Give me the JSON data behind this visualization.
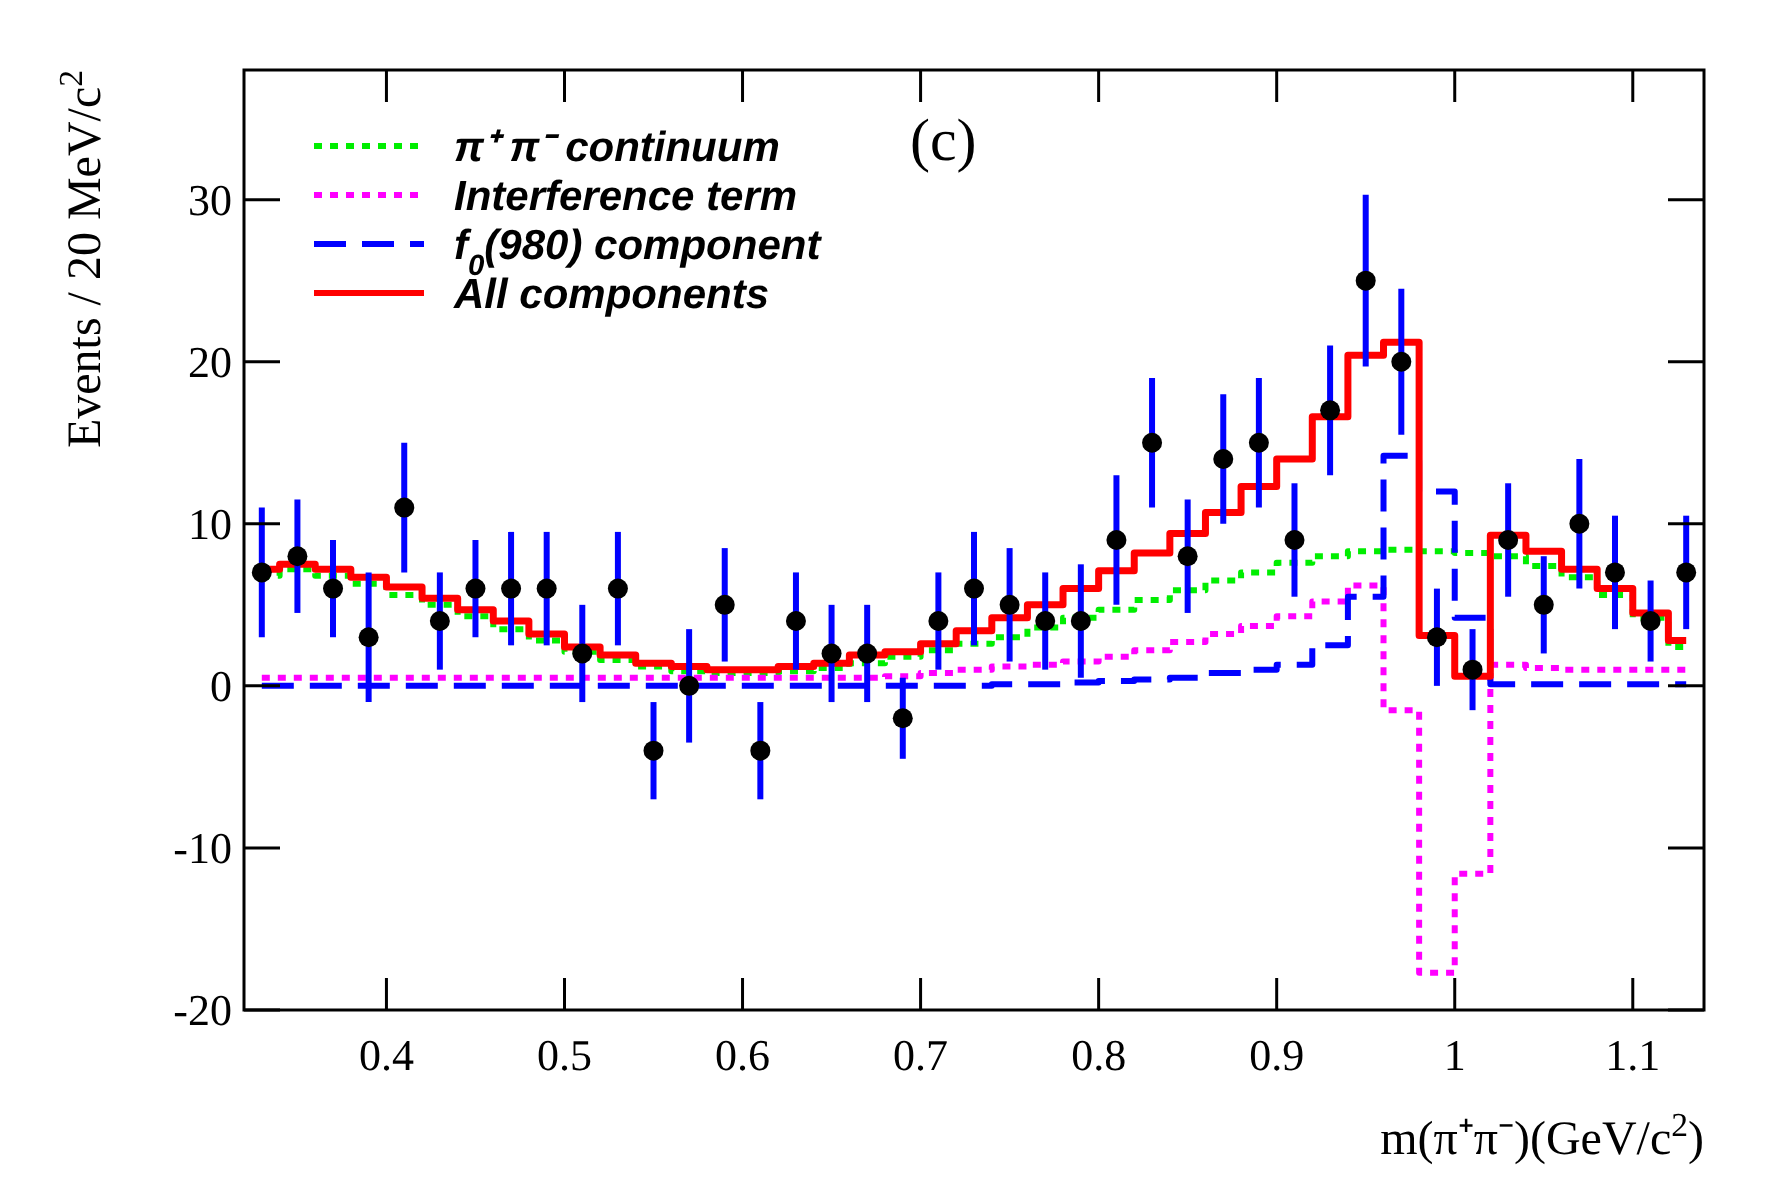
{
  "chart_data": {
    "type": "step",
    "xlabel": "m(π⁺π⁻)(GeV/c$^{2}$)",
    "ylabel": "Events / 20 MeV/c$^{2}$",
    "annotations": [
      "(c)"
    ],
    "x": [
      0.33,
      0.35,
      0.37,
      0.39,
      0.41,
      0.43,
      0.45,
      0.47,
      0.49,
      0.51,
      0.53,
      0.55,
      0.57,
      0.59,
      0.61,
      0.63,
      0.65,
      0.67,
      0.69,
      0.71,
      0.73,
      0.75,
      0.77,
      0.79,
      0.81,
      0.83,
      0.85,
      0.87,
      0.89,
      0.91,
      0.93,
      0.95,
      0.97,
      0.99,
      1.01,
      1.03,
      1.05,
      1.07,
      1.09,
      1.11,
      1.13
    ],
    "xlim": [
      0.32,
      1.14
    ],
    "xticks": [
      0.4,
      0.5,
      0.6,
      0.7,
      0.8,
      0.9,
      {
        "value": 1,
        "label": "1"
      },
      1.1
    ],
    "ylim": [
      -20,
      38
    ],
    "yticks": [
      -20,
      -10,
      0,
      10,
      20,
      30
    ],
    "legend": "top left",
    "grid": false,
    "series": [
      {
        "name": "π⁺ π⁻ continuum",
        "color": "#00ee00",
        "line_style": "dotted",
        "values": [
          6.8,
          7.2,
          6.8,
          6.3,
          5.6,
          5.0,
          4.3,
          3.5,
          2.8,
          2.1,
          1.6,
          1.2,
          0.9,
          0.8,
          0.8,
          0.9,
          1.1,
          1.4,
          1.8,
          2.2,
          2.6,
          3.0,
          3.6,
          4.2,
          4.7,
          5.3,
          5.9,
          6.5,
          7.0,
          7.6,
          8.0,
          8.3,
          8.4,
          8.3,
          8.2,
          8.0,
          7.4,
          6.7,
          5.6,
          4.2,
          2.4
        ]
      },
      {
        "name": "Interference term",
        "color": "#ff00ff",
        "line_style": "dotted",
        "values": [
          0.5,
          0.5,
          0.5,
          0.5,
          0.5,
          0.5,
          0.5,
          0.5,
          0.5,
          0.5,
          0.5,
          0.5,
          0.5,
          0.5,
          0.5,
          0.5,
          0.5,
          0.5,
          0.6,
          0.8,
          1.0,
          1.2,
          1.3,
          1.5,
          1.8,
          2.2,
          2.7,
          3.2,
          3.7,
          4.3,
          5.2,
          6.2,
          -1.5,
          -17.7,
          -11.6,
          1.3,
          1.1,
          1.0,
          1.0,
          1.0,
          1.0
        ]
      },
      {
        "name": "f$_{0}$(980) component",
        "color": "#0000ff",
        "line_style": "dashed",
        "values": [
          0,
          0,
          0,
          0,
          0,
          0,
          0,
          0,
          0,
          0,
          0,
          0,
          0,
          0,
          0,
          0,
          0,
          0,
          0,
          0,
          0,
          0.1,
          0.1,
          0.2,
          0.3,
          0.4,
          0.5,
          0.8,
          1.0,
          1.3,
          2.5,
          5.5,
          14.2,
          12.0,
          4.2,
          0.1,
          0.1,
          0.1,
          0.1,
          0.1,
          0.1
        ]
      },
      {
        "name": "All components",
        "color": "#ff0000",
        "line_style": "solid",
        "values": [
          7.2,
          7.5,
          7.2,
          6.7,
          6.1,
          5.4,
          4.7,
          4.0,
          3.2,
          2.4,
          1.9,
          1.4,
          1.2,
          1.0,
          1.0,
          1.2,
          1.4,
          1.9,
          2.1,
          2.6,
          3.4,
          4.2,
          5.0,
          6.0,
          7.1,
          8.2,
          9.4,
          10.7,
          12.3,
          14.0,
          16.6,
          20.4,
          21.2,
          3.1,
          0.6,
          9.3,
          8.3,
          7.2,
          6.0,
          4.5,
          2.8
        ]
      },
      {
        "type": "scatter",
        "color": "#000000",
        "marker": "circle",
        "values": [
          7,
          8,
          6,
          3,
          11,
          4,
          6,
          6,
          6,
          2,
          6,
          -4,
          0,
          5,
          -4,
          4,
          2,
          2,
          -2,
          4,
          6,
          5,
          4,
          4,
          9,
          15,
          8,
          14,
          15,
          9,
          17,
          25,
          20,
          3,
          1,
          9,
          5,
          10,
          7,
          4,
          7
        ],
        "errors": [
          4,
          3.5,
          3,
          4,
          4,
          3,
          3,
          3.5,
          3.5,
          3,
          3.5,
          3,
          3.5,
          3.5,
          3,
          3,
          3,
          3,
          2.5,
          3,
          3.5,
          3.5,
          3,
          3.5,
          4,
          4,
          3.5,
          4,
          4,
          3.5,
          4,
          5.3,
          4.5,
          3,
          2.5,
          3.5,
          3,
          4,
          3.5,
          2.5,
          3.5
        ]
      }
    ]
  }
}
